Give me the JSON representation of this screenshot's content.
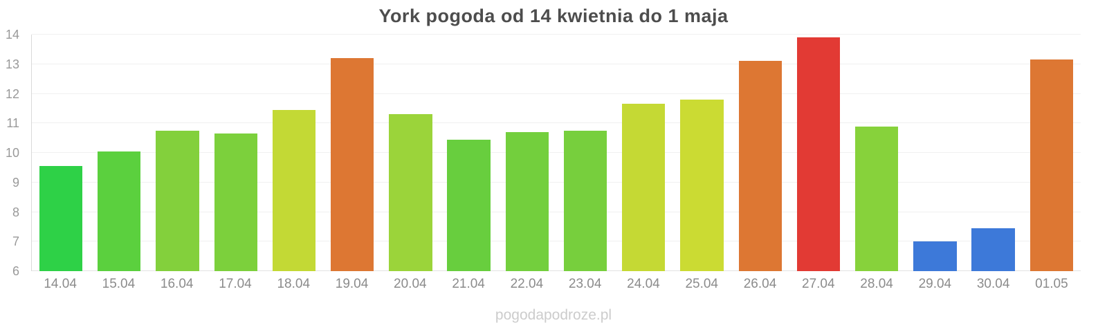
{
  "title": "York pogoda od 14 kwietnia do 1 maja",
  "watermark": "pogodapodroze.pl",
  "chart_data": {
    "type": "bar",
    "title": "York pogoda od 14 kwietnia do 1 maja",
    "xlabel": "",
    "ylabel": "",
    "ylim": [
      6,
      14
    ],
    "yticks": [
      6,
      7,
      8,
      9,
      10,
      11,
      12,
      13,
      14
    ],
    "grid": true,
    "legend": false,
    "categories": [
      "14.04",
      "15.04",
      "16.04",
      "17.04",
      "18.04",
      "19.04",
      "20.04",
      "21.04",
      "22.04",
      "23.04",
      "24.04",
      "25.04",
      "26.04",
      "27.04",
      "28.04",
      "29.04",
      "30.04",
      "01.05"
    ],
    "values": [
      9.55,
      10.05,
      10.75,
      10.65,
      11.45,
      13.2,
      11.3,
      10.45,
      10.7,
      10.75,
      11.65,
      11.8,
      13.1,
      13.9,
      10.9,
      7.0,
      7.45,
      13.15
    ],
    "colors": [
      "#2ed147",
      "#5bd03e",
      "#83d03c",
      "#7cd03c",
      "#c3d935",
      "#dd7733",
      "#9bd43a",
      "#68ce3e",
      "#73cf3d",
      "#77cf3d",
      "#c5d934",
      "#cbdb33",
      "#dd7733",
      "#e23a34",
      "#87d23b",
      "#3d79d9",
      "#3d79d9",
      "#dd7733"
    ]
  }
}
